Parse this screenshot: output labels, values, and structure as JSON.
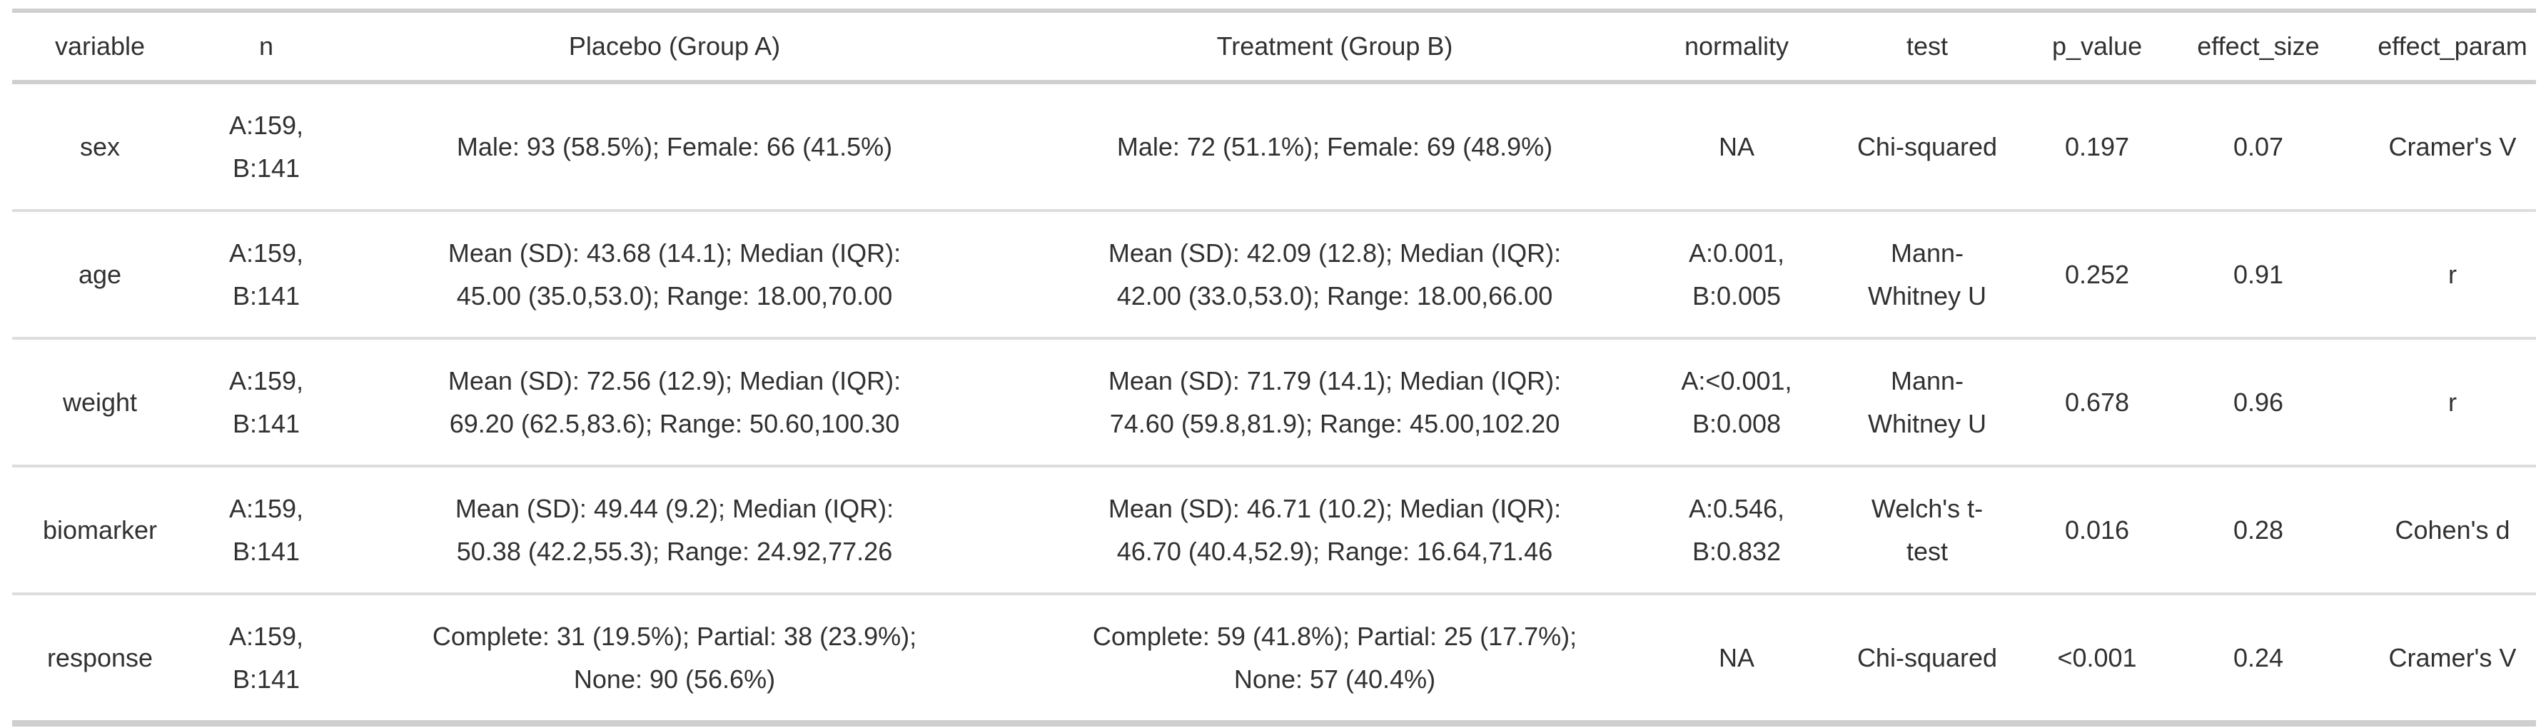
{
  "chart_data": {
    "type": "table",
    "title": "",
    "columns": [
      "variable",
      "n",
      "Placebo (Group A)",
      "Treatment (Group B)",
      "normality",
      "test",
      "p_value",
      "effect_size",
      "effect_param"
    ],
    "rows": [
      [
        "sex",
        "A:159,\nB:141",
        "Male: 93 (58.5%); Female: 66 (41.5%)",
        "Male: 72 (51.1%); Female: 69 (48.9%)",
        "NA",
        "Chi-squared",
        "0.197",
        "0.07",
        "Cramer's V"
      ],
      [
        "age",
        "A:159,\nB:141",
        "Mean (SD): 43.68 (14.1); Median (IQR):\n45.00 (35.0,53.0); Range: 18.00,70.00",
        "Mean (SD): 42.09 (12.8); Median (IQR):\n42.00 (33.0,53.0); Range: 18.00,66.00",
        "A:0.001,\nB:0.005",
        "Mann-\nWhitney U",
        "0.252",
        "0.91",
        "r"
      ],
      [
        "weight",
        "A:159,\nB:141",
        "Mean (SD): 72.56 (12.9); Median (IQR):\n69.20 (62.5,83.6); Range: 50.60,100.30",
        "Mean (SD): 71.79 (14.1); Median (IQR):\n74.60 (59.8,81.9); Range: 45.00,102.20",
        "A:<0.001,\nB:0.008",
        "Mann-\nWhitney U",
        "0.678",
        "0.96",
        "r"
      ],
      [
        "biomarker",
        "A:159,\nB:141",
        "Mean (SD): 49.44 (9.2); Median (IQR):\n50.38 (42.2,55.3); Range: 24.92,77.26",
        "Mean (SD): 46.71 (10.2); Median (IQR):\n46.70 (40.4,52.9); Range: 16.64,71.46",
        "A:0.546,\nB:0.832",
        "Welch's t-\ntest",
        "0.016",
        "0.28",
        "Cohen's d"
      ],
      [
        "response",
        "A:159,\nB:141",
        "Complete: 31 (19.5%); Partial: 38 (23.9%);\nNone: 90 (56.6%)",
        "Complete: 59 (41.8%); Partial: 25 (17.7%);\nNone: 57 (40.4%)",
        "NA",
        "Chi-squared",
        "<0.001",
        "0.24",
        "Cramer's V"
      ]
    ],
    "colors": {
      "text": "#313131",
      "major_border": "#cfcfcf",
      "row_separator": "#dddddd",
      "background": "#ffffff"
    },
    "layout": {
      "grid": "horizontal rules only",
      "cell_alignment": "center"
    }
  }
}
